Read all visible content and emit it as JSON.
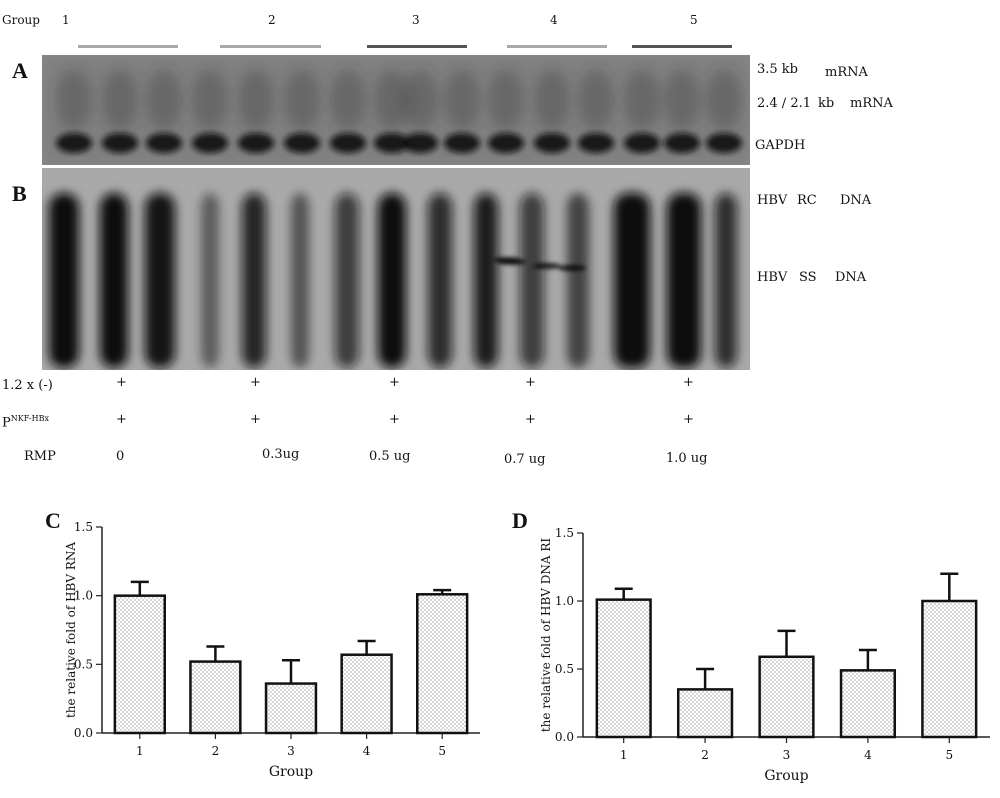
{
  "header": {
    "group_label": "Group",
    "groups": [
      "1",
      "2",
      "3",
      "4",
      "5"
    ],
    "bar_colors": [
      "#a9a9a9",
      "#a9a9a9",
      "#555555",
      "#a9a9a9",
      "#555555"
    ]
  },
  "panel_a": {
    "letter": "A",
    "labels": {
      "rna_35": "3.5 kb",
      "rna_35_unit": "mRNA",
      "rna_24": "2.4 / 2.1",
      "rna_24_kb": "kb",
      "rna_24_unit": "mRNA",
      "gapdh": "GAPDH"
    }
  },
  "panel_b": {
    "letter": "B",
    "labels": {
      "rc_hbv": "HBV",
      "rc_type": "RC",
      "rc_dna": "DNA",
      "ss_hbv": "HBV",
      "ss_type": "SS",
      "ss_dna": "DNA"
    }
  },
  "conditions": {
    "row1_label": "1.2 x (-)",
    "row2_label_main": "P",
    "row2_label_sup": "NKF-HBx",
    "row3_label": "RMP",
    "plus": "+",
    "rmp_values": [
      "0",
      "0.3ug",
      "0.5 ug",
      "0.7 ug",
      "1.0 ug"
    ]
  },
  "chart_data": [
    {
      "panel": "C",
      "type": "bar",
      "categories": [
        "1",
        "2",
        "3",
        "4",
        "5"
      ],
      "values": [
        1.0,
        0.52,
        0.36,
        0.57,
        1.01
      ],
      "errors": [
        0.1,
        0.11,
        0.17,
        0.1,
        0.03
      ],
      "xlabel": "Group",
      "ylabel": "the relative fold of HBV RNA",
      "ylim": [
        0,
        1.5
      ],
      "yticks": [
        "0.0",
        "0.5",
        "1.0",
        "1.5"
      ],
      "grid": false
    },
    {
      "panel": "D",
      "type": "bar",
      "categories": [
        "1",
        "2",
        "3",
        "4",
        "5"
      ],
      "values": [
        1.01,
        0.35,
        0.59,
        0.49,
        1.0
      ],
      "errors": [
        0.08,
        0.15,
        0.19,
        0.15,
        0.2
      ],
      "xlabel": "Group",
      "ylabel": "the relative fold of HBV DNA RI",
      "ylim": [
        0,
        1.5
      ],
      "yticks": [
        "0.0",
        "0.5",
        "1.0",
        "1.5"
      ],
      "grid": false
    }
  ]
}
